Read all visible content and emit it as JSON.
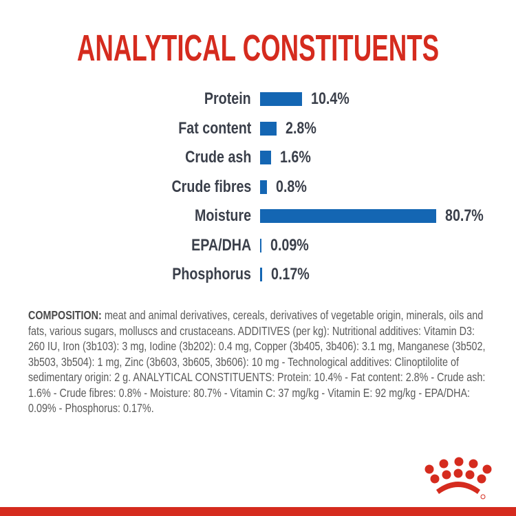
{
  "chart_data": {
    "type": "bar",
    "orientation": "horizontal",
    "title": "ANALYTICAL CONSTITUENTS",
    "categories": [
      "Protein",
      "Fat content",
      "Crude ash",
      "Crude fibres",
      "Moisture",
      "EPA/DHA",
      "Phosphorus"
    ],
    "values": [
      10.4,
      2.8,
      1.6,
      0.8,
      80.7,
      0.09,
      0.17
    ],
    "value_labels": [
      "10.4%",
      "2.8%",
      "1.6%",
      "0.8%",
      "80.7%",
      "0.09%",
      "0.17%"
    ],
    "unit": "%",
    "grid": false,
    "bar_color": "#1466b3"
  },
  "composition": {
    "heading": "COMPOSITION:",
    "text": " meat and animal derivatives, cereals, derivatives of vegetable origin, minerals, oils and fats, various sugars, molluscs and crustaceans. ADDITIVES (per kg): Nutritional additives: Vitamin D3: 260 IU, Iron (3b103): 3 mg, Iodine (3b202): 0.4 mg, Copper (3b405, 3b406): 3.1 mg, Manganese (3b502, 3b503, 3b504): 1 mg, Zinc (3b603, 3b605, 3b606): 10 mg - Technological additives: Clinoptilolite of sedimentary origin: 2 g. ANALYTICAL CONSTITUENTS: Protein: 10.4% - Fat content: 2.8% - Crude ash: 1.6% - Crude fibres: 0.8% - Moisture: 80.7% - Vitamin C: 37 mg/kg - Vitamin E: 92 mg/kg - EPA/DHA: 0.09% - Phosphorus: 0.17%."
  },
  "brand": {
    "logo": "royal-canin-crown-logo",
    "color": "#d52b1e"
  }
}
